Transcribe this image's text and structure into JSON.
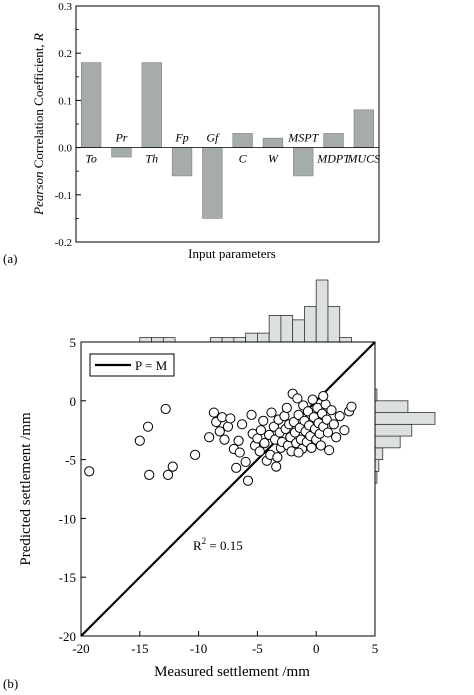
{
  "chart_data": [
    {
      "panel_label": "(a)",
      "type": "bar",
      "categories": [
        "To",
        "Pr",
        "Th",
        "Fp",
        "Gf",
        "C",
        "W",
        "MSPT",
        "MDPT",
        "MUCS"
      ],
      "values": [
        0.18,
        -0.02,
        0.18,
        -0.06,
        -0.15,
        0.03,
        0.02,
        -0.06,
        0.03,
        0.08
      ],
      "xlabel": "Input parameters",
      "ylabel_italic": "Pearson",
      "ylabel_rest": " Correlation Coefficient, ",
      "ylabel_var": "R",
      "ylim": [
        -0.2,
        0.3
      ],
      "yticks": [
        "-0.2",
        "-0.1",
        "0.0",
        "0.1",
        "0.2",
        "0.3"
      ],
      "bar_color": "#a6aca8",
      "grid": false
    },
    {
      "panel_label": "(b)",
      "type": "scatter",
      "xlabel": "Measured settlement /mm",
      "ylabel": "Predicted settlement /mm",
      "xlim": [
        -20,
        5
      ],
      "ylim": [
        -20,
        5
      ],
      "xticks": [
        "-20",
        "-15",
        "-10",
        "-5",
        "0",
        "5"
      ],
      "yticks": [
        "-20",
        "-15",
        "-10",
        "-5",
        "0",
        "5"
      ],
      "legend": {
        "label": "P = M",
        "position": "top-left"
      },
      "annotation": {
        "base": "R",
        "sup": "2",
        "rest": " = 0.15"
      },
      "reference_line": {
        "name": "P = M",
        "from": [
          -20,
          -20
        ],
        "to": [
          5,
          5
        ]
      },
      "points": [
        [
          -19.3,
          -6.0
        ],
        [
          -15.0,
          -3.4
        ],
        [
          -14.3,
          -2.2
        ],
        [
          -14.2,
          -6.3
        ],
        [
          -12.8,
          -0.7
        ],
        [
          -12.6,
          -6.3
        ],
        [
          -12.2,
          -5.6
        ],
        [
          -10.3,
          -4.6
        ],
        [
          -9.1,
          -3.1
        ],
        [
          -8.7,
          -1.0
        ],
        [
          -8.5,
          -1.8
        ],
        [
          -8.2,
          -2.6
        ],
        [
          -8.0,
          -1.4
        ],
        [
          -7.8,
          -3.3
        ],
        [
          -7.5,
          -2.2
        ],
        [
          -7.3,
          -1.5
        ],
        [
          -7.0,
          -4.1
        ],
        [
          -6.8,
          -5.7
        ],
        [
          -6.6,
          -3.4
        ],
        [
          -6.3,
          -2.0
        ],
        [
          -6.0,
          -5.2
        ],
        [
          -5.8,
          -6.8
        ],
        [
          -5.5,
          -1.2
        ],
        [
          -5.4,
          -2.8
        ],
        [
          -5.2,
          -3.8
        ],
        [
          -5.0,
          -3.2
        ],
        [
          -4.8,
          -4.3
        ],
        [
          -4.7,
          -2.5
        ],
        [
          -4.5,
          -1.7
        ],
        [
          -4.4,
          -3.6
        ],
        [
          -4.2,
          -5.1
        ],
        [
          -4.0,
          -2.9
        ],
        [
          -3.9,
          -4.6
        ],
        [
          -3.8,
          -1.0
        ],
        [
          -3.6,
          -2.2
        ],
        [
          -3.5,
          -3.3
        ],
        [
          -3.4,
          -5.6
        ],
        [
          -3.2,
          -1.6
        ],
        [
          -3.1,
          -2.7
        ],
        [
          -3.0,
          -4.0
        ],
        [
          -2.9,
          -3.5
        ],
        [
          -2.7,
          -1.3
        ],
        [
          -2.6,
          -2.4
        ],
        [
          -2.5,
          -0.6
        ],
        [
          -2.4,
          -3.8
        ],
        [
          -2.3,
          -2.0
        ],
        [
          -2.2,
          -3.1
        ],
        [
          -2.1,
          -4.3
        ],
        [
          -2.0,
          0.6
        ],
        [
          -1.9,
          -1.8
        ],
        [
          -1.8,
          -2.7
        ],
        [
          -1.7,
          -3.6
        ],
        [
          -1.6,
          0.2
        ],
        [
          -1.5,
          -1.2
        ],
        [
          -1.4,
          -2.3
        ],
        [
          -1.3,
          -3.3
        ],
        [
          -1.2,
          -4.1
        ],
        [
          -1.1,
          -0.4
        ],
        [
          -1.0,
          -1.7
        ],
        [
          -0.9,
          -2.6
        ],
        [
          -0.8,
          -3.5
        ],
        [
          -0.7,
          -0.9
        ],
        [
          -0.6,
          -2.1
        ],
        [
          -0.5,
          -3.0
        ],
        [
          -0.4,
          -4.0
        ],
        [
          -0.3,
          0.1
        ],
        [
          -0.2,
          -1.4
        ],
        [
          -0.1,
          -2.4
        ],
        [
          0.0,
          -3.3
        ],
        [
          0.1,
          -0.6
        ],
        [
          0.2,
          -1.9
        ],
        [
          0.3,
          -2.8
        ],
        [
          0.4,
          -3.8
        ],
        [
          0.5,
          -1.1
        ],
        [
          0.6,
          -2.2
        ],
        [
          0.8,
          -0.3
        ],
        [
          0.9,
          -1.6
        ],
        [
          1.0,
          -2.7
        ],
        [
          1.1,
          -4.2
        ],
        [
          1.3,
          -0.8
        ],
        [
          1.5,
          -2.0
        ],
        [
          1.7,
          -3.1
        ],
        [
          2.0,
          -1.3
        ],
        [
          2.4,
          -2.5
        ],
        [
          2.8,
          -0.9
        ],
        [
          3.0,
          -0.5
        ],
        [
          -6.5,
          -4.4
        ],
        [
          -3.3,
          -4.8
        ],
        [
          -1.5,
          -4.4
        ],
        [
          0.6,
          0.4
        ]
      ],
      "histogram_top": {
        "bin_edges": [
          -15,
          -14,
          -13,
          -12,
          -11,
          -10,
          -9,
          -8,
          -7,
          -6,
          -5,
          -4,
          -3,
          -2,
          -1,
          0,
          1,
          2,
          3
        ],
        "counts": [
          1,
          1,
          1,
          0,
          0,
          0,
          1,
          1,
          1,
          2,
          2,
          6,
          6,
          5,
          8,
          14,
          8,
          1
        ]
      },
      "histogram_right": {
        "bin_edges": [
          -7,
          -6,
          -5,
          -4,
          -3,
          -2,
          -1,
          0,
          1,
          2
        ],
        "counts": [
          1,
          2,
          4,
          13,
          19,
          31,
          17,
          1,
          0
        ]
      },
      "marker_color": "#ffffff",
      "line_color": "#000000",
      "hist_color": "#dde1de"
    }
  ]
}
